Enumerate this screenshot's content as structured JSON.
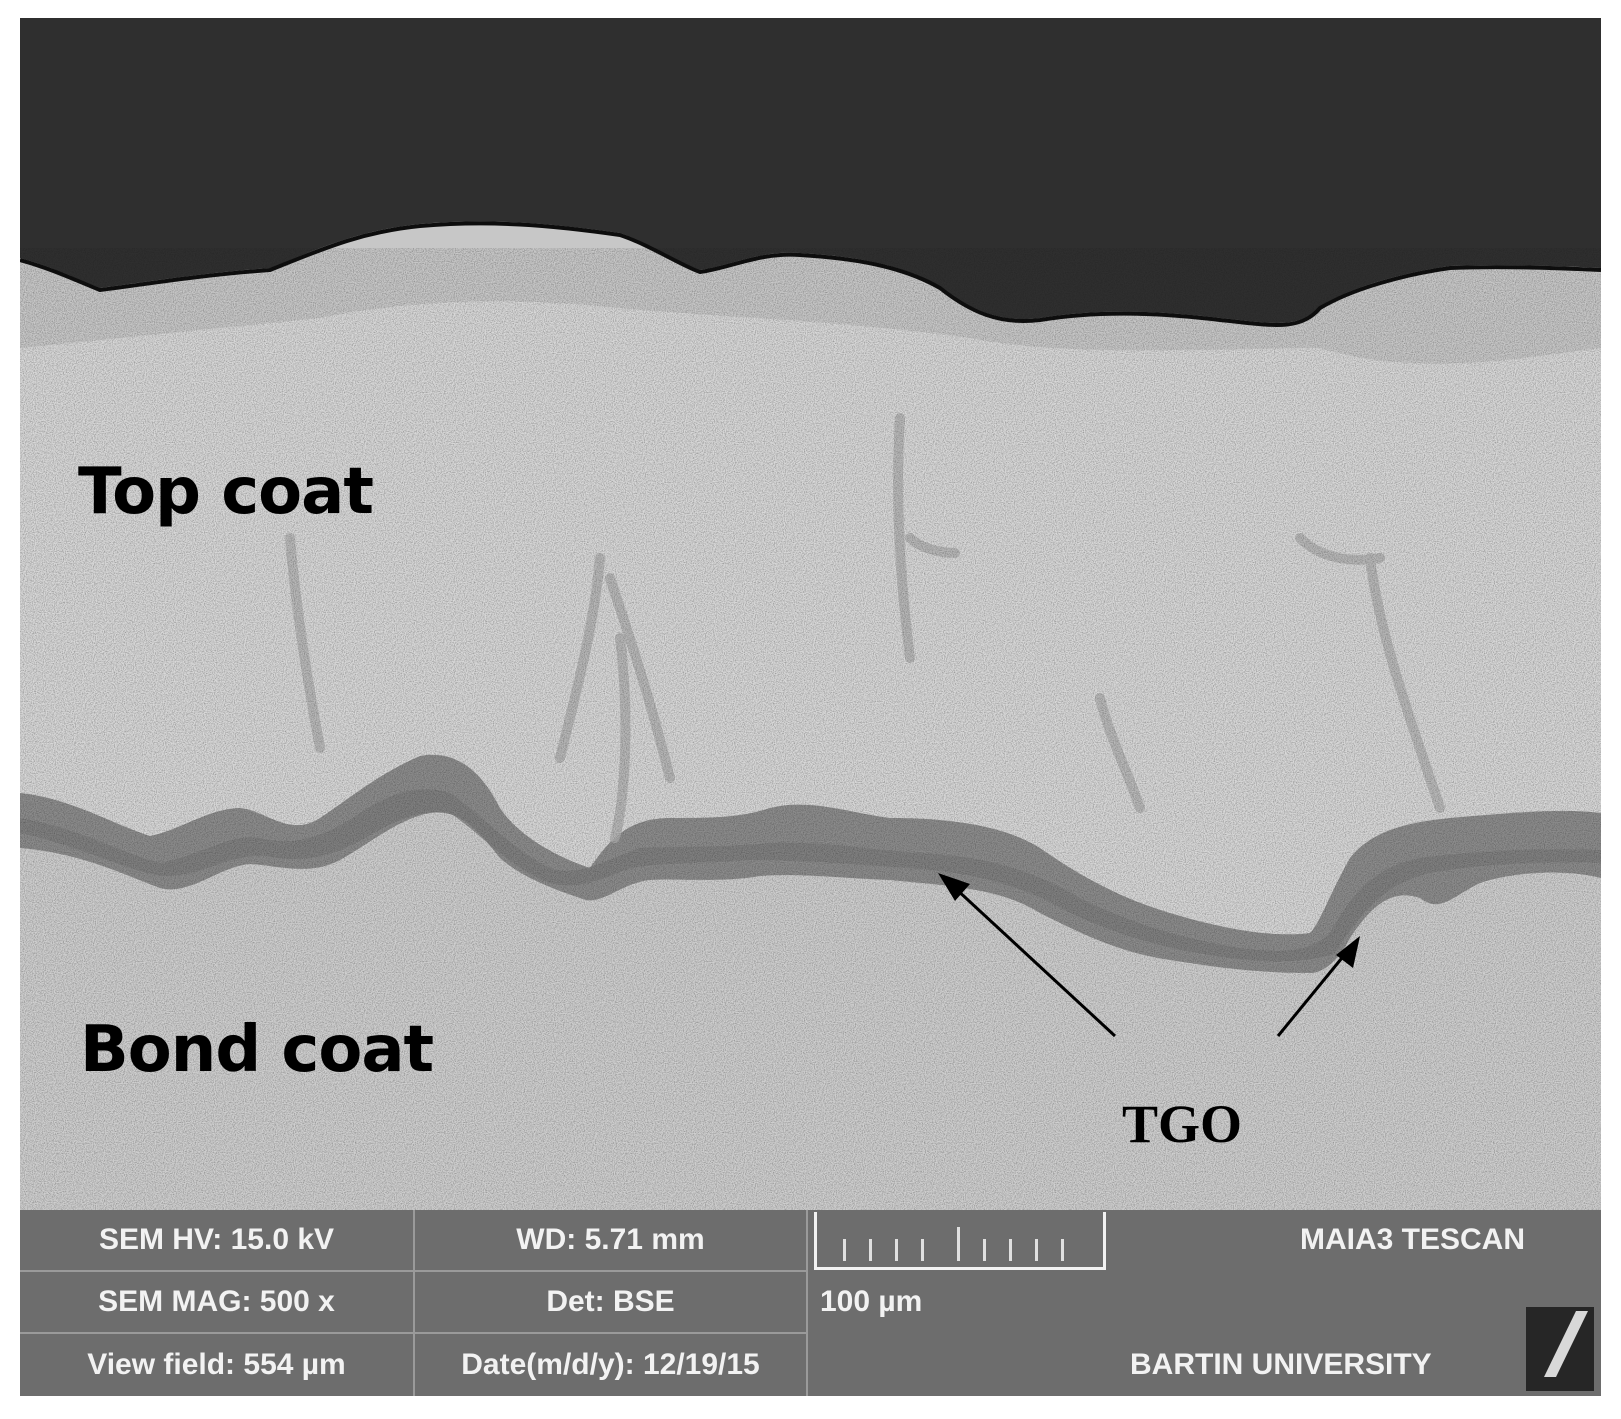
{
  "labels": {
    "top_coat": "Top coat",
    "bond_coat": "Bond coat",
    "tgo": "TGO"
  },
  "info_bar": {
    "hv": "SEM HV: 15.0 kV",
    "mag": "SEM MAG: 500 x",
    "view_field": "View field: 554 µm",
    "wd": "WD: 5.71 mm",
    "det": "Det: BSE",
    "date": "Date(m/d/y): 12/19/15",
    "scale_label": "100 µm",
    "instrument": "MAIA3 TESCAN",
    "institution": "BARTIN UNIVERSITY"
  },
  "colors": {
    "background_dark": "#2f2f2f",
    "top_coat": "#d6d6d6",
    "tgo_layer": "#8a8a8a",
    "bond_coat": "#cdcdcd",
    "info_bar": "#6d6d6d",
    "info_text": "#f2f2f2"
  }
}
